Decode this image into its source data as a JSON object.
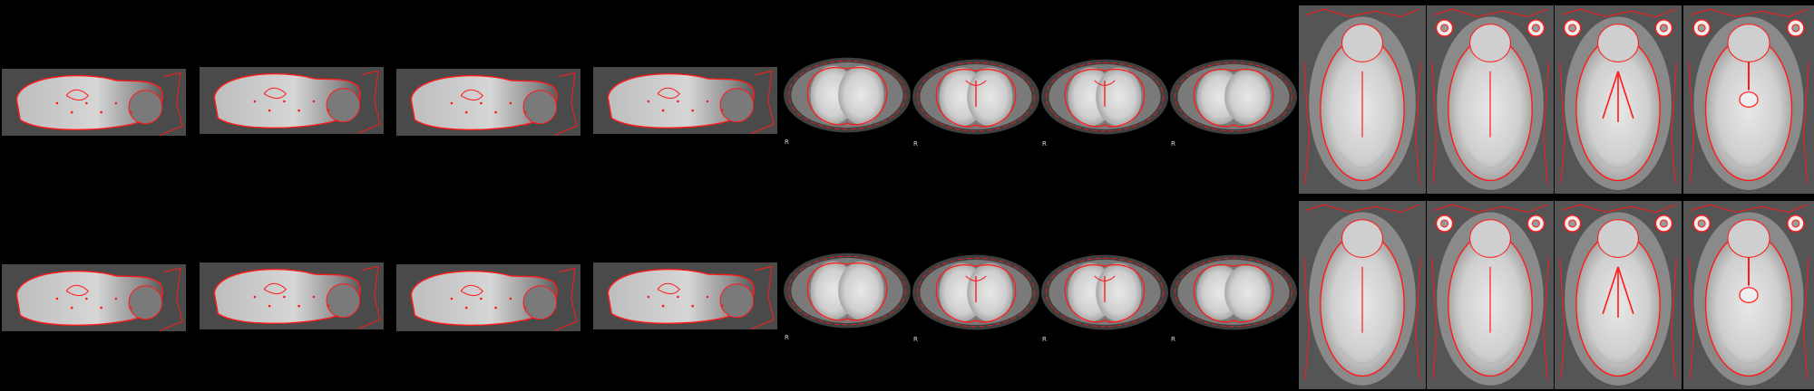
{
  "figure": {
    "description_rows": [
      "top",
      "bottom"
    ],
    "colors": {
      "background": "#000000",
      "overlay_outline": "#ff1a1a",
      "tissue_light": "#d9d9d9",
      "tissue_dark": "#555555"
    }
  },
  "rows": [
    {
      "name": "top",
      "sagittal": [
        {},
        {},
        {},
        {}
      ],
      "coronal": [
        {
          "orientation_label": "R"
        },
        {
          "orientation_label": "R"
        },
        {
          "orientation_label": "R"
        },
        {
          "orientation_label": "R"
        }
      ],
      "axial": [
        {},
        {},
        {},
        {}
      ]
    },
    {
      "name": "bottom",
      "sagittal": [
        {},
        {},
        {},
        {}
      ],
      "coronal": [
        {
          "orientation_label": "R"
        },
        {
          "orientation_label": "R"
        },
        {
          "orientation_label": "R"
        },
        {
          "orientation_label": "R"
        }
      ],
      "axial": [
        {},
        {},
        {},
        {}
      ]
    }
  ]
}
